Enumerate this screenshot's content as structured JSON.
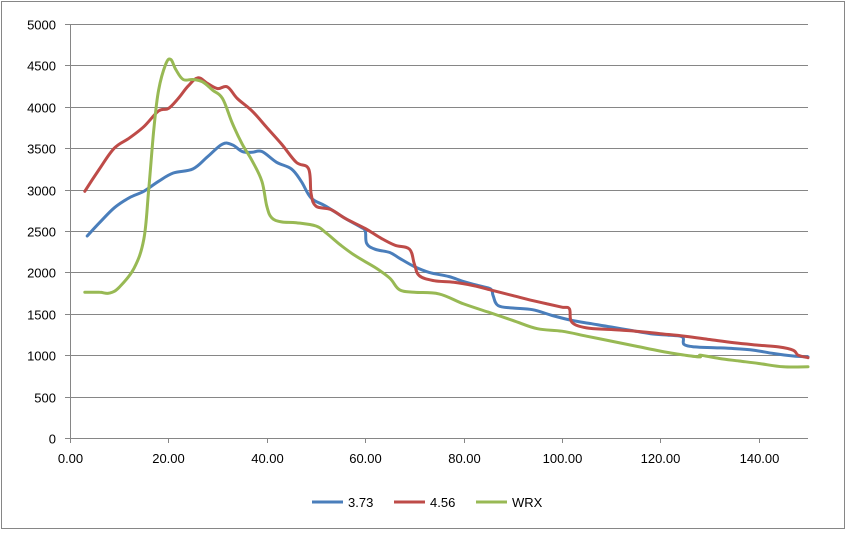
{
  "chart_data": {
    "type": "line",
    "title": "",
    "xlabel": "",
    "ylabel": "",
    "xlim": [
      0,
      150
    ],
    "ylim": [
      0,
      5000
    ],
    "x_ticks": [
      0,
      20,
      40,
      60,
      80,
      100,
      120,
      140
    ],
    "x_tick_labels": [
      "0.00",
      "20.00",
      "40.00",
      "60.00",
      "80.00",
      "100.00",
      "120.00",
      "140.00"
    ],
    "y_ticks": [
      0,
      500,
      1000,
      1500,
      2000,
      2500,
      3000,
      3500,
      4000,
      4500,
      5000
    ],
    "y_tick_labels": [
      "0",
      "500",
      "1000",
      "1500",
      "2000",
      "2500",
      "3000",
      "3500",
      "4000",
      "4500",
      "5000"
    ],
    "grid": "horizontal",
    "legend_position": "bottom",
    "series": [
      {
        "name": "3.73",
        "color": "#4a7ebb",
        "points": [
          [
            3.5,
            2440
          ],
          [
            6,
            2600
          ],
          [
            9,
            2780
          ],
          [
            12,
            2900
          ],
          [
            15,
            2980
          ],
          [
            18,
            3100
          ],
          [
            21,
            3200
          ],
          [
            25,
            3250
          ],
          [
            28,
            3400
          ],
          [
            31,
            3550
          ],
          [
            33,
            3540
          ],
          [
            35,
            3460
          ],
          [
            37,
            3450
          ],
          [
            39,
            3460
          ],
          [
            42,
            3330
          ],
          [
            45,
            3250
          ],
          [
            47,
            3100
          ],
          [
            49,
            2900
          ],
          [
            52,
            2800
          ],
          [
            56,
            2650
          ],
          [
            59,
            2550
          ],
          [
            60,
            2500
          ],
          [
            60.3,
            2350
          ],
          [
            62,
            2280
          ],
          [
            65,
            2240
          ],
          [
            67,
            2170
          ],
          [
            70,
            2070
          ],
          [
            73,
            2000
          ],
          [
            77,
            1950
          ],
          [
            80,
            1890
          ],
          [
            83,
            1840
          ],
          [
            85.5,
            1800
          ],
          [
            86,
            1720
          ],
          [
            87,
            1600
          ],
          [
            90,
            1570
          ],
          [
            94,
            1550
          ],
          [
            98,
            1480
          ],
          [
            102,
            1420
          ],
          [
            106,
            1380
          ],
          [
            110,
            1340
          ],
          [
            114,
            1300
          ],
          [
            118,
            1260
          ],
          [
            122,
            1240
          ],
          [
            124.5,
            1220
          ],
          [
            124.8,
            1130
          ],
          [
            127,
            1100
          ],
          [
            131,
            1090
          ],
          [
            135,
            1080
          ],
          [
            139,
            1060
          ],
          [
            143,
            1020
          ],
          [
            147,
            990
          ],
          [
            150,
            980
          ]
        ]
      },
      {
        "name": "4.56",
        "color": "#be4b48",
        "points": [
          [
            3,
            2980
          ],
          [
            6,
            3250
          ],
          [
            9,
            3500
          ],
          [
            12,
            3620
          ],
          [
            15,
            3760
          ],
          [
            18,
            3950
          ],
          [
            20,
            3980
          ],
          [
            22,
            4100
          ],
          [
            24,
            4250
          ],
          [
            26,
            4350
          ],
          [
            28,
            4280
          ],
          [
            30,
            4220
          ],
          [
            32,
            4240
          ],
          [
            34,
            4100
          ],
          [
            37,
            3950
          ],
          [
            40,
            3750
          ],
          [
            43,
            3550
          ],
          [
            46,
            3330
          ],
          [
            48.5,
            3250
          ],
          [
            49,
            2950
          ],
          [
            50,
            2800
          ],
          [
            53,
            2760
          ],
          [
            56,
            2650
          ],
          [
            60,
            2530
          ],
          [
            63,
            2420
          ],
          [
            66,
            2330
          ],
          [
            69,
            2280
          ],
          [
            70,
            2100
          ],
          [
            71,
            1960
          ],
          [
            74,
            1900
          ],
          [
            78,
            1880
          ],
          [
            82,
            1840
          ],
          [
            86,
            1780
          ],
          [
            90,
            1720
          ],
          [
            94,
            1660
          ],
          [
            97,
            1620
          ],
          [
            100,
            1580
          ],
          [
            101.5,
            1560
          ],
          [
            102,
            1400
          ],
          [
            105,
            1330
          ],
          [
            110,
            1310
          ],
          [
            115,
            1290
          ],
          [
            120,
            1260
          ],
          [
            125,
            1230
          ],
          [
            130,
            1190
          ],
          [
            135,
            1150
          ],
          [
            140,
            1120
          ],
          [
            144,
            1100
          ],
          [
            147,
            1060
          ],
          [
            148,
            1000
          ],
          [
            150,
            970
          ]
        ]
      },
      {
        "name": "WRX",
        "color": "#98b954",
        "points": [
          [
            3,
            1760
          ],
          [
            6,
            1760
          ],
          [
            8,
            1750
          ],
          [
            10,
            1820
          ],
          [
            13,
            2050
          ],
          [
            15,
            2400
          ],
          [
            16,
            3000
          ],
          [
            17,
            3700
          ],
          [
            18,
            4200
          ],
          [
            19.5,
            4520
          ],
          [
            20.5,
            4570
          ],
          [
            21.5,
            4450
          ],
          [
            23,
            4330
          ],
          [
            25,
            4330
          ],
          [
            27,
            4300
          ],
          [
            29,
            4200
          ],
          [
            31,
            4100
          ],
          [
            33,
            3800
          ],
          [
            35,
            3550
          ],
          [
            37,
            3350
          ],
          [
            39,
            3100
          ],
          [
            40,
            2800
          ],
          [
            41,
            2660
          ],
          [
            43,
            2610
          ],
          [
            46,
            2600
          ],
          [
            50,
            2560
          ],
          [
            52,
            2480
          ],
          [
            55,
            2330
          ],
          [
            58,
            2200
          ],
          [
            62,
            2060
          ],
          [
            65,
            1930
          ],
          [
            67,
            1790
          ],
          [
            70,
            1760
          ],
          [
            75,
            1740
          ],
          [
            80,
            1620
          ],
          [
            85,
            1520
          ],
          [
            90,
            1420
          ],
          [
            95,
            1320
          ],
          [
            100,
            1290
          ],
          [
            105,
            1230
          ],
          [
            110,
            1170
          ],
          [
            115,
            1110
          ],
          [
            120,
            1050
          ],
          [
            125,
            1000
          ],
          [
            128,
            980
          ],
          [
            128.2,
            1000
          ],
          [
            132,
            960
          ],
          [
            136,
            930
          ],
          [
            140,
            900
          ],
          [
            145,
            860
          ],
          [
            150,
            860
          ]
        ]
      }
    ]
  }
}
